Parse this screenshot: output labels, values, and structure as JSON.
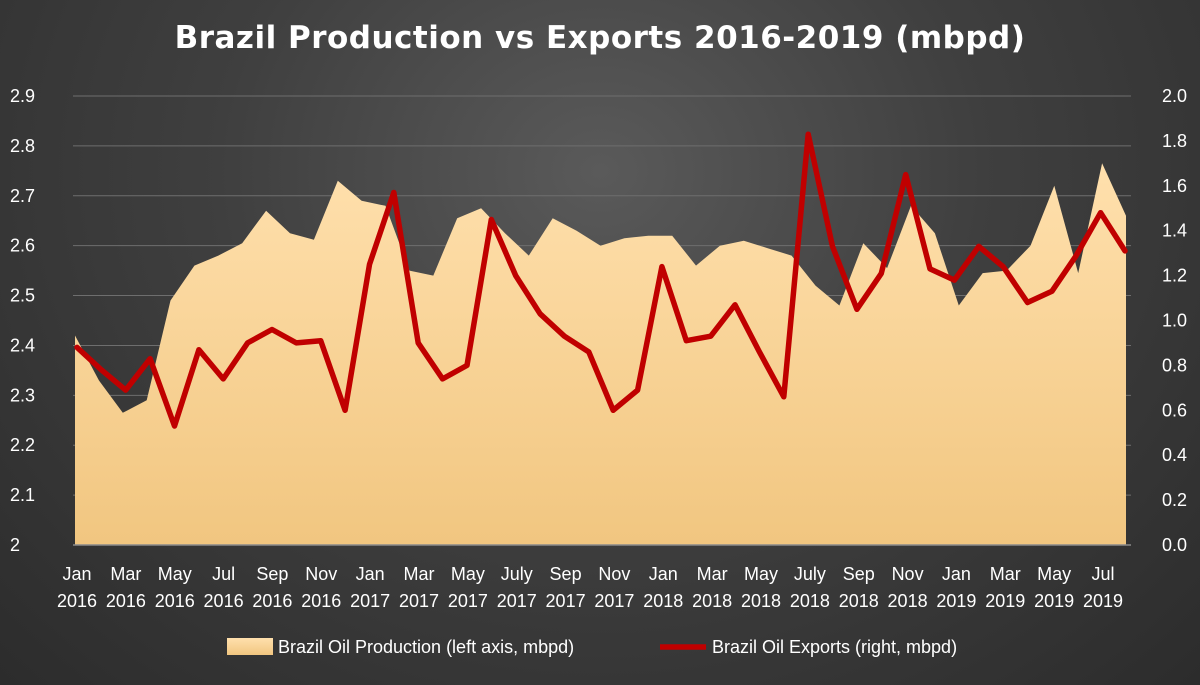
{
  "chart_data": {
    "type": "area+line",
    "title": "Brazil Production vs Exports 2016-2019 (mbpd)",
    "x_tick_labels": [
      [
        "Jan",
        "2016"
      ],
      [
        "Mar",
        "2016"
      ],
      [
        "May",
        "2016"
      ],
      [
        "Jul",
        "2016"
      ],
      [
        "Sep",
        "2016"
      ],
      [
        "Nov",
        "2016"
      ],
      [
        "Jan",
        "2017"
      ],
      [
        "Mar",
        "2017"
      ],
      [
        "May",
        "2017"
      ],
      [
        "July",
        "2017"
      ],
      [
        "Sep",
        "2017"
      ],
      [
        "Nov",
        "2017"
      ],
      [
        "Jan",
        "2018"
      ],
      [
        "Mar",
        "2018"
      ],
      [
        "May",
        "2018"
      ],
      [
        "July",
        "2018"
      ],
      [
        "Sep",
        "2018"
      ],
      [
        "Nov",
        "2018"
      ],
      [
        "Jan",
        "2019"
      ],
      [
        "Mar",
        "2019"
      ],
      [
        "May",
        "2019"
      ],
      [
        "Jul",
        "2019"
      ]
    ],
    "left_axis": {
      "min": 2.0,
      "max": 2.9,
      "ticks": [
        "2",
        "2.1",
        "2.2",
        "2.3",
        "2.4",
        "2.5",
        "2.6",
        "2.7",
        "2.8",
        "2.9"
      ]
    },
    "right_axis": {
      "min": 0.0,
      "max": 2.0,
      "ticks": [
        "0.0",
        "0.2",
        "0.4",
        "0.6",
        "0.8",
        "1.0",
        "1.2",
        "1.4",
        "1.6",
        "1.8",
        "2.0"
      ]
    },
    "series": [
      {
        "name": "Brazil Oil Production (left axis, mbpd)",
        "kind": "area",
        "axis": "left",
        "color": "#f6cf8e",
        "values": [
          2.42,
          2.33,
          2.265,
          2.29,
          2.49,
          2.56,
          2.58,
          2.605,
          2.67,
          2.625,
          2.612,
          2.73,
          2.69,
          2.68,
          2.55,
          2.54,
          2.655,
          2.675,
          2.625,
          2.58,
          2.655,
          2.63,
          2.6,
          2.615,
          2.62,
          2.62,
          2.56,
          2.6,
          2.61,
          2.595,
          2.58,
          2.52,
          2.48,
          2.605,
          2.555,
          2.68,
          2.625,
          2.48,
          2.545,
          2.55,
          2.6,
          2.72,
          2.545,
          2.765,
          2.66
        ]
      },
      {
        "name": "Brazil Oil Exports (right, mbpd)",
        "kind": "line",
        "axis": "right",
        "color": "#c00000",
        "values": [
          0.88,
          0.78,
          0.69,
          0.83,
          0.53,
          0.87,
          0.74,
          0.9,
          0.96,
          0.9,
          0.91,
          0.6,
          1.25,
          1.57,
          0.9,
          0.74,
          0.8,
          1.45,
          1.2,
          1.03,
          0.93,
          0.86,
          0.6,
          0.69,
          1.24,
          0.91,
          0.93,
          1.07,
          0.86,
          0.66,
          1.83,
          1.33,
          1.05,
          1.21,
          1.65,
          1.23,
          1.18,
          1.33,
          1.24,
          1.08,
          1.13,
          1.29,
          1.48,
          1.31
        ]
      }
    ],
    "legend": {
      "position": "bottom",
      "items": [
        "Brazil Oil Production (left axis, mbpd)",
        "Brazil Oil Exports (right, mbpd)"
      ]
    },
    "grid": true
  }
}
